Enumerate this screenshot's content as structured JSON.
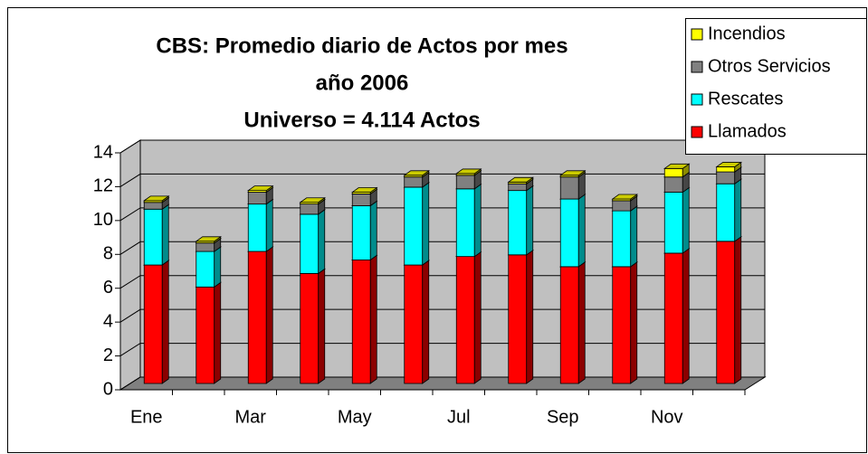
{
  "chart_data": {
    "type": "bar",
    "title": [
      "CBS: Promedio diario de Actos por mes",
      "año 2006",
      "Universo = 4.114 Actos"
    ],
    "categories": [
      "Ene",
      null,
      "Mar",
      null,
      "May",
      null,
      "Jul",
      null,
      "Sep",
      null,
      "Nov",
      null
    ],
    "stacked": true,
    "series": [
      {
        "name": "Llamados",
        "color": "#ff0000",
        "values": [
          7.0,
          5.7,
          7.8,
          6.5,
          7.3,
          7.0,
          7.5,
          7.6,
          6.9,
          6.9,
          7.7,
          8.4
        ]
      },
      {
        "name": "Rescates",
        "color": "#00ffff",
        "values": [
          3.3,
          2.1,
          2.8,
          3.5,
          3.2,
          4.6,
          4.0,
          3.8,
          4.0,
          3.3,
          3.6,
          3.4
        ]
      },
      {
        "name": "Otros Servicios",
        "color": "#808080",
        "values": [
          0.4,
          0.5,
          0.7,
          0.6,
          0.7,
          0.6,
          0.8,
          0.4,
          1.3,
          0.6,
          0.9,
          0.7
        ]
      },
      {
        "name": "Incendios",
        "color": "#ffff00",
        "values": [
          0.1,
          0.1,
          0.1,
          0.1,
          0.1,
          0.1,
          0.1,
          0.1,
          0.1,
          0.1,
          0.5,
          0.3
        ]
      }
    ],
    "ylim": [
      0,
      14
    ],
    "yticks": [
      0,
      2,
      4,
      6,
      8,
      10,
      12,
      14
    ],
    "grid": true,
    "legend": "top-right"
  }
}
